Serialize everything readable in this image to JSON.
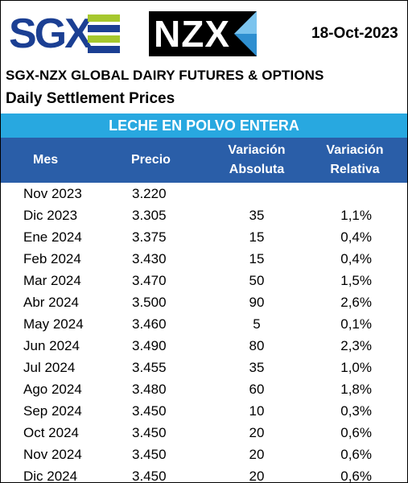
{
  "logos": {
    "sgx": "SGX",
    "nzx": "NZX"
  },
  "colors": {
    "sgx_blue": "#1b3f93",
    "sgx_green": "#a6c82e",
    "banner": "#28a8e0",
    "header": "#2a5ea8",
    "nzx_blue": "#2f8fd0"
  },
  "date": "18-Oct-2023",
  "title": "SGX-NZX GLOBAL DAIRY FUTURES & OPTIONS",
  "subtitle": "Daily Settlement Prices",
  "product": "LECHE EN POLVO ENTERA",
  "columns": {
    "mes": "Mes",
    "precio": "Precio",
    "abs_line1": "Variación",
    "abs_line2": "Absoluta",
    "rel_line1": "Variación",
    "rel_line2": "Relativa"
  },
  "rows": [
    {
      "mes": "Nov 2023",
      "precio": "3.220",
      "abs": "",
      "rel": ""
    },
    {
      "mes": "Dic 2023",
      "precio": "3.305",
      "abs": "35",
      "rel": "1,1%"
    },
    {
      "mes": "Ene 2024",
      "precio": "3.375",
      "abs": "15",
      "rel": "0,4%"
    },
    {
      "mes": "Feb 2024",
      "precio": "3.430",
      "abs": "15",
      "rel": "0,4%"
    },
    {
      "mes": "Mar 2024",
      "precio": "3.470",
      "abs": "50",
      "rel": "1,5%"
    },
    {
      "mes": "Abr 2024",
      "precio": "3.500",
      "abs": "90",
      "rel": "2,6%"
    },
    {
      "mes": "May 2024",
      "precio": "3.460",
      "abs": "5",
      "rel": "0,1%"
    },
    {
      "mes": "Jun 2024",
      "precio": "3.490",
      "abs": "80",
      "rel": "2,3%"
    },
    {
      "mes": "Jul 2024",
      "precio": "3.455",
      "abs": "35",
      "rel": "1,0%"
    },
    {
      "mes": "Ago 2024",
      "precio": "3.480",
      "abs": "60",
      "rel": "1,8%"
    },
    {
      "mes": "Sep 2024",
      "precio": "3.450",
      "abs": "10",
      "rel": "0,3%"
    },
    {
      "mes": "Oct 2024",
      "precio": "3.450",
      "abs": "20",
      "rel": "0,6%"
    },
    {
      "mes": "Nov 2024",
      "precio": "3.450",
      "abs": "20",
      "rel": "0,6%"
    },
    {
      "mes": "Dic 2024",
      "precio": "3.450",
      "abs": "20",
      "rel": "0,6%"
    }
  ]
}
